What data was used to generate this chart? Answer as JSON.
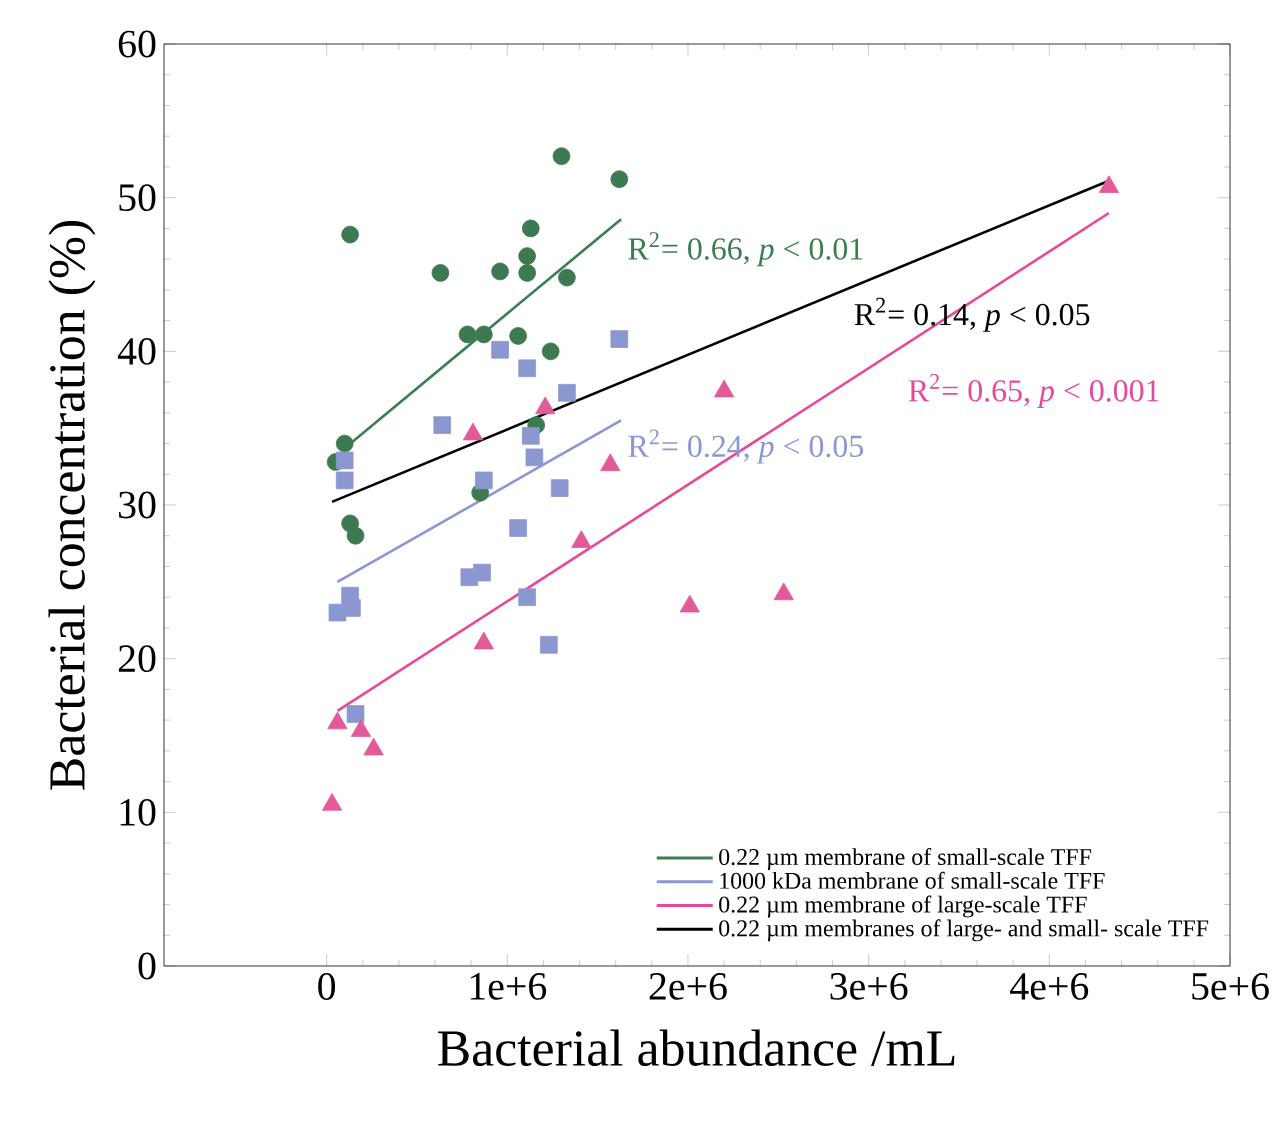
{
  "chart_data": {
    "type": "scatter",
    "xlabel": "Bacterial abundance /mL",
    "ylabel": "Bacterial concentration (%)",
    "xlim": [
      -900000,
      5000000
    ],
    "ylim": [
      0,
      60
    ],
    "xticks": [
      0,
      {
        "value": 1000000,
        "label": "1e+6"
      },
      {
        "value": 2000000,
        "label": "2e+6"
      },
      {
        "value": 3000000,
        "label": "3e+6"
      },
      {
        "value": 4000000,
        "label": "4e+6"
      },
      {
        "value": 5000000,
        "label": "5e+6"
      }
    ],
    "yticks": [
      0,
      10,
      20,
      30,
      40,
      50,
      60
    ],
    "legend": "bottom right",
    "series": [
      {
        "marker": "circle",
        "color": "#3d7a52",
        "x": [
          130000,
          1300000,
          1620000,
          1130000,
          1110000,
          630000,
          960000,
          1110000,
          1330000,
          780000,
          870000,
          1060000,
          1240000,
          100000,
          50000,
          130000,
          160000,
          850000,
          1160000
        ],
        "values": [
          47.6,
          52.7,
          51.2,
          48.0,
          46.2,
          45.1,
          45.2,
          45.1,
          44.8,
          41.1,
          41.1,
          41.0,
          40.0,
          34.0,
          32.8,
          28.8,
          28.0,
          30.8,
          35.2
        ]
      },
      {
        "marker": "square",
        "color": "#8a97d1",
        "x": [
          1620000,
          960000,
          1110000,
          1330000,
          640000,
          1130000,
          1150000,
          100000,
          100000,
          870000,
          1290000,
          1060000,
          790000,
          860000,
          1110000,
          1230000,
          130000,
          60000,
          140000,
          160000
        ],
        "values": [
          40.8,
          40.1,
          38.9,
          37.3,
          35.2,
          34.5,
          33.1,
          32.9,
          31.6,
          31.6,
          31.1,
          28.5,
          25.3,
          25.6,
          24.0,
          20.9,
          24.1,
          23.0,
          23.3,
          16.4
        ]
      },
      {
        "marker": "triangle",
        "color": "#e35a98",
        "x": [
          810000,
          1210000,
          1570000,
          1410000,
          2010000,
          2530000,
          870000,
          60000,
          190000,
          260000,
          30000,
          2200000,
          4330000
        ],
        "values": [
          34.6,
          36.3,
          32.6,
          27.6,
          23.4,
          24.2,
          21.0,
          15.8,
          15.3,
          14.1,
          10.5,
          37.4,
          50.7
        ]
      },
      {
        "type": "line",
        "name": "0.22 µm membrane of small-scale TFF",
        "color": "#3a7d4f",
        "x": [
          90000,
          1630000
        ],
        "values": [
          33.6,
          48.6
        ]
      },
      {
        "type": "line",
        "name": "1000 kDa membrane of small-scale TFF",
        "color": "#8b96d6",
        "x": [
          60000,
          1630000
        ],
        "values": [
          25.0,
          35.5
        ]
      },
      {
        "type": "line",
        "name": "0.22 µm membrane of large-scale TFF",
        "color": "#e8479a",
        "x": [
          60000,
          4330000
        ],
        "values": [
          16.6,
          49.0
        ]
      },
      {
        "type": "line",
        "name": "0.22 µm membranes of large- and small- scale TFF",
        "color": "#000000",
        "x": [
          30000,
          4330000
        ],
        "values": [
          30.2,
          51.1
        ]
      }
    ],
    "annotations": [
      "R$^{2}$= 0.66, *p* < 0.01",
      "R$^{2}$= 0.24, *p* < 0.05",
      "R$^{2}$= 0.65, *p* < 0.001",
      "R$^{2}$= 0.14, *p* < 0.05"
    ]
  }
}
